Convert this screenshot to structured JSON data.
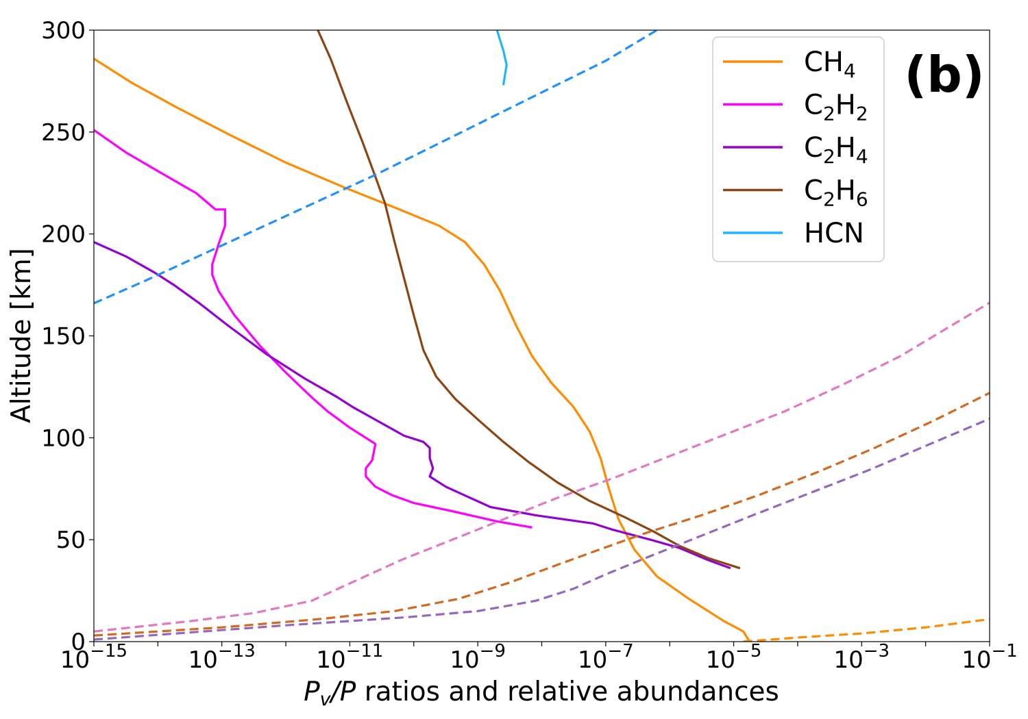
{
  "chart_data": {
    "type": "line",
    "panel_label": "(b)",
    "xlabel": {
      "italic_a": "P",
      "sub": "v",
      "italic_b": "/P",
      "rest": " ratios and relative abundances"
    },
    "ylabel": "Altitude [km]",
    "x_scale": "log",
    "xlim_exp": [
      -15,
      -1
    ],
    "ylim": [
      0,
      300
    ],
    "x_ticks": [
      {
        "base": "10",
        "exp": "−15"
      },
      {
        "base": "10",
        "exp": "−13"
      },
      {
        "base": "10",
        "exp": "−11"
      },
      {
        "base": "10",
        "exp": "−9"
      },
      {
        "base": "10",
        "exp": "−7"
      },
      {
        "base": "10",
        "exp": "−5"
      },
      {
        "base": "10",
        "exp": "−3"
      },
      {
        "base": "10",
        "exp": "−1"
      }
    ],
    "y_ticks": [
      "0",
      "50",
      "100",
      "150",
      "200",
      "250",
      "300"
    ],
    "legend": {
      "position": "top-right",
      "entries": [
        {
          "text": "CH",
          "sub": "4",
          "tail": "",
          "sub2": "",
          "color": "#ff8c00"
        },
        {
          "text": "C",
          "sub": "2",
          "tail": "H",
          "sub2": "2",
          "color": "#ff00ff"
        },
        {
          "text": "C",
          "sub": "2",
          "tail": "H",
          "sub2": "4",
          "color": "#9400d3"
        },
        {
          "text": "C",
          "sub": "2",
          "tail": "H",
          "sub2": "6",
          "color": "#8b4513"
        },
        {
          "text": "HCN",
          "sub": "",
          "tail": "",
          "sub2": "",
          "color": "#1eb4ff"
        }
      ]
    },
    "series": [
      {
        "name": "CH4",
        "style": "solid",
        "color": "#ff8c00",
        "points": [
          [
            -15,
            286
          ],
          [
            -14.4,
            274
          ],
          [
            -13.7,
            262
          ],
          [
            -12.9,
            249
          ],
          [
            -12.0,
            235
          ],
          [
            -11.1,
            223
          ],
          [
            -10.3,
            213
          ],
          [
            -9.6,
            204
          ],
          [
            -9.2,
            196
          ],
          [
            -8.9,
            185
          ],
          [
            -8.65,
            172
          ],
          [
            -8.4,
            155
          ],
          [
            -8.15,
            140
          ],
          [
            -7.85,
            127
          ],
          [
            -7.5,
            115
          ],
          [
            -7.25,
            103
          ],
          [
            -7.08,
            90
          ],
          [
            -6.95,
            75
          ],
          [
            -6.8,
            60
          ],
          [
            -6.55,
            45
          ],
          [
            -6.2,
            32
          ],
          [
            -5.7,
            21
          ],
          [
            -5.15,
            10
          ],
          [
            -4.85,
            5
          ],
          [
            -4.75,
            0
          ]
        ]
      },
      {
        "name": "C2H2",
        "style": "solid",
        "color": "#ff00ff",
        "points": [
          [
            -15,
            251
          ],
          [
            -14.5,
            240
          ],
          [
            -13.9,
            229
          ],
          [
            -13.4,
            220
          ],
          [
            -13.1,
            212
          ],
          [
            -12.95,
            212
          ],
          [
            -12.95,
            204
          ],
          [
            -13.05,
            195
          ],
          [
            -13.15,
            185
          ],
          [
            -13.15,
            180
          ],
          [
            -13.05,
            172
          ],
          [
            -12.8,
            160
          ],
          [
            -12.4,
            145
          ],
          [
            -12.0,
            132
          ],
          [
            -11.6,
            120
          ],
          [
            -11.35,
            113
          ],
          [
            -11.0,
            105
          ],
          [
            -10.7,
            99
          ],
          [
            -10.6,
            97
          ],
          [
            -10.65,
            89
          ],
          [
            -10.75,
            85
          ],
          [
            -10.75,
            81
          ],
          [
            -10.6,
            76
          ],
          [
            -10.35,
            72
          ],
          [
            -10.0,
            68
          ],
          [
            -9.4,
            64
          ],
          [
            -8.7,
            59
          ],
          [
            -8.15,
            56
          ]
        ]
      },
      {
        "name": "C2H4",
        "style": "solid",
        "color": "#9400d3",
        "points": [
          [
            -15,
            196
          ],
          [
            -14.5,
            189
          ],
          [
            -14.05,
            181
          ],
          [
            -13.75,
            175
          ],
          [
            -13.35,
            166
          ],
          [
            -12.9,
            155
          ],
          [
            -12.3,
            141
          ],
          [
            -11.7,
            129
          ],
          [
            -11.2,
            120
          ],
          [
            -10.95,
            115
          ],
          [
            -10.55,
            108
          ],
          [
            -10.15,
            101
          ],
          [
            -9.85,
            98
          ],
          [
            -9.75,
            95
          ],
          [
            -9.75,
            90
          ],
          [
            -9.7,
            85
          ],
          [
            -9.75,
            81
          ],
          [
            -9.5,
            76
          ],
          [
            -9.15,
            71
          ],
          [
            -8.8,
            66
          ],
          [
            -8.1,
            62
          ],
          [
            -7.2,
            58
          ],
          [
            -6.9,
            55
          ],
          [
            -6.3,
            50
          ],
          [
            -5.85,
            46
          ],
          [
            -5.4,
            40
          ],
          [
            -5.05,
            36
          ]
        ]
      },
      {
        "name": "C2H6",
        "style": "solid",
        "color": "#8b4513",
        "points": [
          [
            -11.5,
            300
          ],
          [
            -11.3,
            286
          ],
          [
            -11.05,
            265
          ],
          [
            -10.8,
            245
          ],
          [
            -10.6,
            228
          ],
          [
            -10.45,
            215
          ],
          [
            -10.3,
            196
          ],
          [
            -10.15,
            178
          ],
          [
            -10.0,
            160
          ],
          [
            -9.85,
            143
          ],
          [
            -9.65,
            130
          ],
          [
            -9.35,
            119
          ],
          [
            -9.0,
            109
          ],
          [
            -8.6,
            98
          ],
          [
            -8.2,
            88
          ],
          [
            -7.75,
            78
          ],
          [
            -7.25,
            69
          ],
          [
            -6.7,
            61
          ],
          [
            -6.25,
            54
          ],
          [
            -5.85,
            47
          ],
          [
            -5.4,
            41
          ],
          [
            -4.9,
            36
          ]
        ]
      },
      {
        "name": "HCN",
        "style": "solid",
        "color": "#1eb4ff",
        "points": [
          [
            -8.7,
            300
          ],
          [
            -8.6,
            290
          ],
          [
            -8.55,
            283
          ],
          [
            -8.6,
            273
          ]
        ]
      },
      {
        "name": "HCN saturation",
        "style": "dashed",
        "color": "#1e90ff",
        "points": [
          [
            -15,
            166
          ],
          [
            -14.2,
            177
          ],
          [
            -13.3,
            190
          ],
          [
            -12.4,
            203
          ],
          [
            -11.5,
            216
          ],
          [
            -10.6,
            229
          ],
          [
            -9.7,
            243
          ],
          [
            -8.8,
            257
          ],
          [
            -7.9,
            271
          ],
          [
            -7.0,
            285
          ],
          [
            -6.2,
            300
          ]
        ]
      },
      {
        "name": "C2H2 saturation",
        "style": "dashed",
        "color": "#e377c2",
        "points": [
          [
            -15,
            5
          ],
          [
            -13.5,
            10
          ],
          [
            -12.5,
            14
          ],
          [
            -11.6,
            20
          ],
          [
            -10.9,
            30
          ],
          [
            -10.2,
            40
          ],
          [
            -9.4,
            50
          ],
          [
            -8.6,
            60
          ],
          [
            -7.8,
            70
          ],
          [
            -6.9,
            80
          ],
          [
            -6.0,
            91
          ],
          [
            -5.1,
            102
          ],
          [
            -4.2,
            113
          ],
          [
            -3.3,
            126
          ],
          [
            -2.4,
            140
          ],
          [
            -1.6,
            155
          ],
          [
            -0.8,
            170
          ],
          [
            0,
            186
          ],
          [
            0.6,
            199
          ]
        ]
      },
      {
        "name": "C2H6 saturation",
        "style": "dashed",
        "color": "#d2691e",
        "points": [
          [
            -15,
            3
          ],
          [
            -13.0,
            7
          ],
          [
            -11.5,
            11
          ],
          [
            -10.3,
            15
          ],
          [
            -9.3,
            21
          ],
          [
            -8.5,
            29
          ],
          [
            -7.9,
            36
          ],
          [
            -7.2,
            44
          ],
          [
            -6.4,
            53
          ],
          [
            -5.5,
            62
          ],
          [
            -4.6,
            72
          ],
          [
            -3.7,
            83
          ],
          [
            -2.8,
            95
          ],
          [
            -1.9,
            108
          ],
          [
            -1.0,
            122
          ],
          [
            -0.1,
            137
          ],
          [
            0.8,
            151
          ],
          [
            1.5,
            165
          ]
        ]
      },
      {
        "name": "C2H4 saturation",
        "style": "dashed",
        "color": "#9467bd",
        "points": [
          [
            -15,
            1
          ],
          [
            -12.0,
            8
          ],
          [
            -10.1,
            12
          ],
          [
            -9.0,
            15
          ],
          [
            -8.1,
            20
          ],
          [
            -7.5,
            26
          ],
          [
            -7.0,
            33
          ],
          [
            -6.3,
            42
          ],
          [
            -5.5,
            52
          ],
          [
            -4.7,
            62
          ],
          [
            -3.8,
            73
          ],
          [
            -2.9,
            84
          ],
          [
            -2.0,
            96
          ],
          [
            -1.1,
            108
          ],
          [
            -0.2,
            120
          ],
          [
            0.7,
            135
          ],
          [
            1.4,
            150
          ]
        ]
      },
      {
        "name": "CH4 saturation",
        "style": "dashed",
        "color": "#ff8c00",
        "points": [
          [
            -4.85,
            0
          ],
          [
            -4.0,
            2
          ],
          [
            -3.0,
            4
          ],
          [
            -2.0,
            7
          ],
          [
            -1.0,
            11
          ]
        ]
      }
    ]
  }
}
